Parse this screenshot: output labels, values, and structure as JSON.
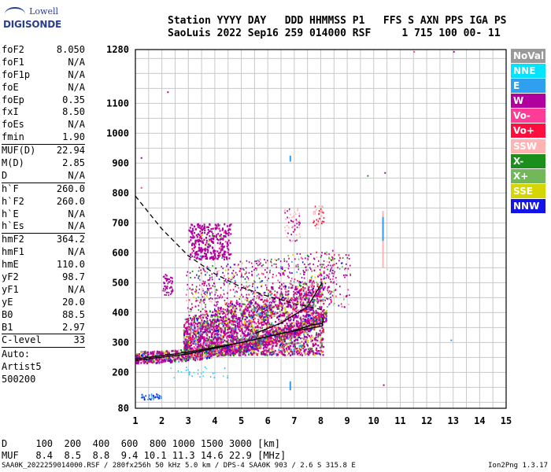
{
  "logo": {
    "top": "Lowell",
    "bottom": "DIGISONDE"
  },
  "header": {
    "line1": "Station YYYY DAY   DDD HHMMSS P1   FFS S AXN PPS IGA PS",
    "line2": "SaoLuis 2022 Sep16 259 014000 RSF     1 715 100 00- 11"
  },
  "params": [
    {
      "k": "foF2",
      "v": "8.050"
    },
    {
      "k": "foF1",
      "v": "N/A"
    },
    {
      "k": "foF1p",
      "v": "N/A"
    },
    {
      "k": "foE",
      "v": "N/A"
    },
    {
      "k": "foEp",
      "v": "0.35"
    },
    {
      "k": "fxI",
      "v": "8.50"
    },
    {
      "k": "foEs",
      "v": "N/A"
    },
    {
      "k": "fmin",
      "v": "1.90"
    },
    {
      "sep": true
    },
    {
      "k": "MUF(D)",
      "v": "22.94"
    },
    {
      "k": "M(D)",
      "v": "2.85"
    },
    {
      "k": "D",
      "v": "N/A"
    },
    {
      "sep": true
    },
    {
      "k": "h`F",
      "v": "260.0"
    },
    {
      "k": "h`F2",
      "v": "260.0"
    },
    {
      "k": "h`E",
      "v": "N/A"
    },
    {
      "k": "h`Es",
      "v": "N/A"
    },
    {
      "sep": true
    },
    {
      "k": "hmF2",
      "v": "364.2"
    },
    {
      "k": "hmF1",
      "v": "N/A"
    },
    {
      "k": "hmE",
      "v": "110.0"
    },
    {
      "k": "yF2",
      "v": "98.7"
    },
    {
      "k": "yF1",
      "v": "N/A"
    },
    {
      "k": "yE",
      "v": "20.0"
    },
    {
      "k": "B0",
      "v": "88.5"
    },
    {
      "k": "B1",
      "v": "2.97"
    },
    {
      "sep": true
    },
    {
      "k": "C-level",
      "v": "33"
    },
    {
      "sep": true
    }
  ],
  "auto": {
    "line1": "Auto:",
    "line2": "Artist5",
    "line3": "500200"
  },
  "legend": [
    {
      "label": "NoVal",
      "color": "#999999"
    },
    {
      "label": "NNE",
      "color": "#00e5ff"
    },
    {
      "label": "E",
      "color": "#2f9ff0"
    },
    {
      "label": "W",
      "color": "#b0009e"
    },
    {
      "label": "Vo-",
      "color": "#ff3d96"
    },
    {
      "label": "Vo+",
      "color": "#ff0f3e"
    },
    {
      "label": "SSW",
      "color": "#ffb3b3"
    },
    {
      "label": "X-",
      "color": "#1a8f1a"
    },
    {
      "label": "X+",
      "color": "#72b85a"
    },
    {
      "label": "SSE",
      "color": "#d5d500"
    },
    {
      "label": "NNW",
      "color": "#1414e8"
    }
  ],
  "muf_table": {
    "row1": "D     100  200  400  600  800 1000 1500 3000 [km]",
    "row2": "MUF   8.4  8.5  8.8  9.4 10.1 11.3 14.6 22.9 [MHz]"
  },
  "footer": "SAA0K_2022259014000.RSF / 280fx256h 50 kHz 5.0 km / DPS-4 SAA0K 903 / 2.6 S 315.8 E",
  "version": "Ion2Png 1.3.17",
  "chart_data": {
    "type": "scatter",
    "xlim": [
      1,
      15
    ],
    "ylim": [
      80,
      1280
    ],
    "x_ticks": [
      1,
      2,
      3,
      4,
      5,
      6,
      7,
      8,
      9,
      10,
      11,
      12,
      13,
      14,
      15
    ],
    "y_ticks": [
      80,
      200,
      300,
      400,
      500,
      600,
      700,
      800,
      900,
      1000,
      1100,
      1280
    ],
    "x_unit": "MHz",
    "y_unit": "km",
    "grid": true,
    "series": [
      {
        "type": "o-trace-profile",
        "values": [
          [
            1.0,
            240
          ],
          [
            3.0,
            262
          ],
          [
            5.0,
            300
          ],
          [
            7.0,
            340
          ],
          [
            7.7,
            360
          ],
          [
            8.05,
            364
          ]
        ]
      },
      {
        "type": "o-trace-upper",
        "values": [
          [
            5.5,
            330
          ],
          [
            6.5,
            365
          ],
          [
            7.5,
            420
          ],
          [
            8.05,
            500
          ]
        ]
      },
      {
        "type": "x-trace",
        "values": [
          [
            1.0,
            245
          ],
          [
            3.0,
            268
          ],
          [
            5.0,
            300
          ],
          [
            6.5,
            330
          ],
          [
            8.05,
            355
          ],
          [
            8.1,
            380
          ]
        ]
      },
      {
        "type": "dashed-profile",
        "values": [
          [
            1.0,
            790
          ],
          [
            2.0,
            680
          ],
          [
            3.0,
            590
          ],
          [
            4.0,
            530
          ],
          [
            5.0,
            485
          ],
          [
            6.0,
            455
          ],
          [
            7.0,
            430
          ],
          [
            8.05,
            410
          ]
        ]
      }
    ]
  }
}
